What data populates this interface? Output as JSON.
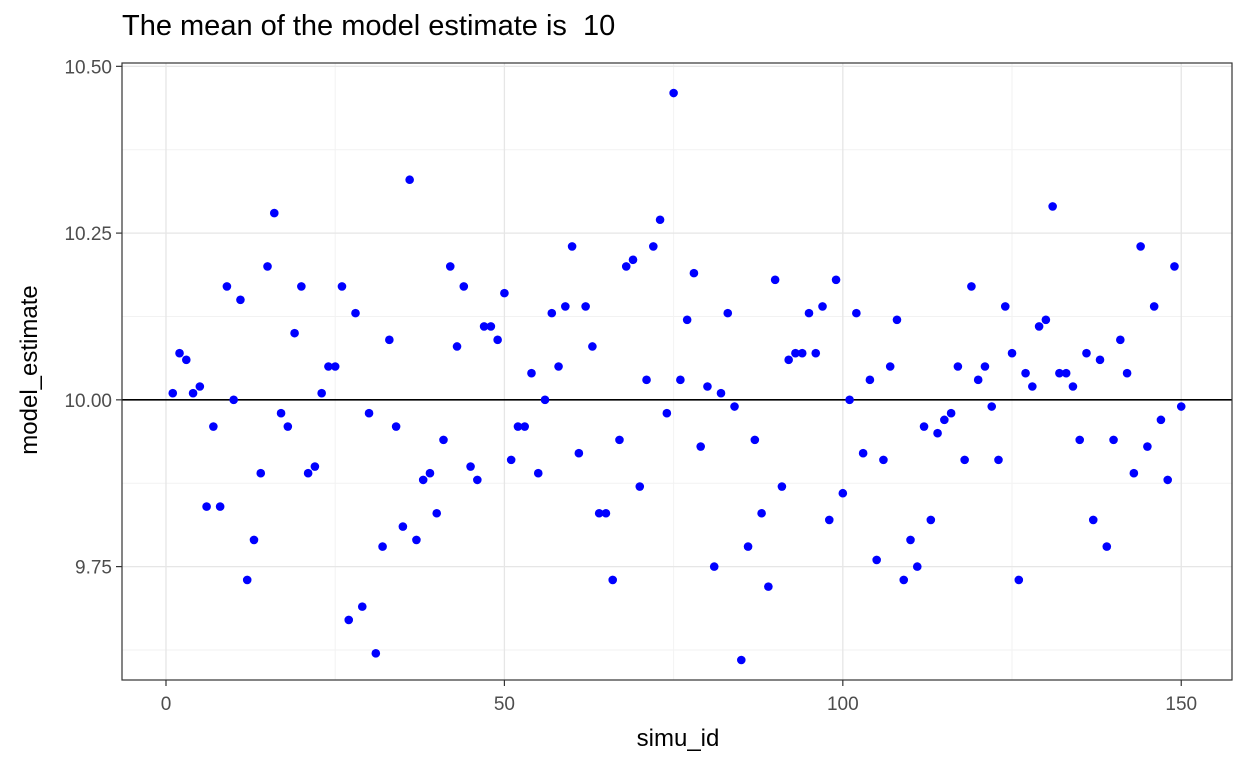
{
  "chart_data": {
    "type": "scatter",
    "title": "The mean of the model estimate is  10",
    "xlabel": "simu_id",
    "ylabel": "model_estimate",
    "xlim": [
      -6.5,
      157.5
    ],
    "ylim": [
      9.58,
      10.505
    ],
    "x_ticks": [
      0,
      50,
      100,
      150
    ],
    "x_tick_labels": [
      "0",
      "50",
      "100",
      "150"
    ],
    "y_ticks": [
      9.75,
      10.0,
      10.25,
      10.5
    ],
    "y_tick_labels": [
      "9.75",
      "10.00",
      "10.25",
      "10.50"
    ],
    "grid": true,
    "reference_line": 10.0,
    "point_color": "#0000ff",
    "points": [
      [
        1,
        10.01
      ],
      [
        2,
        10.07
      ],
      [
        3,
        10.06
      ],
      [
        4,
        10.01
      ],
      [
        5,
        10.02
      ],
      [
        6,
        9.84
      ],
      [
        7,
        9.96
      ],
      [
        8,
        9.84
      ],
      [
        9,
        10.17
      ],
      [
        10,
        10.0
      ],
      [
        11,
        10.15
      ],
      [
        12,
        9.73
      ],
      [
        13,
        9.79
      ],
      [
        14,
        9.89
      ],
      [
        15,
        10.2
      ],
      [
        16,
        10.28
      ],
      [
        17,
        9.98
      ],
      [
        18,
        9.96
      ],
      [
        19,
        10.1
      ],
      [
        20,
        10.17
      ],
      [
        21,
        9.89
      ],
      [
        22,
        9.9
      ],
      [
        23,
        10.01
      ],
      [
        24,
        10.05
      ],
      [
        25,
        10.05
      ],
      [
        26,
        10.17
      ],
      [
        27,
        9.67
      ],
      [
        28,
        10.13
      ],
      [
        29,
        9.69
      ],
      [
        30,
        9.98
      ],
      [
        31,
        9.62
      ],
      [
        32,
        9.78
      ],
      [
        33,
        10.09
      ],
      [
        34,
        9.96
      ],
      [
        35,
        9.81
      ],
      [
        36,
        10.33
      ],
      [
        37,
        9.79
      ],
      [
        38,
        9.88
      ],
      [
        39,
        9.89
      ],
      [
        40,
        9.83
      ],
      [
        41,
        9.94
      ],
      [
        42,
        10.2
      ],
      [
        43,
        10.08
      ],
      [
        44,
        10.17
      ],
      [
        45,
        9.9
      ],
      [
        46,
        9.88
      ],
      [
        47,
        10.11
      ],
      [
        48,
        10.11
      ],
      [
        49,
        10.09
      ],
      [
        50,
        10.16
      ],
      [
        51,
        9.91
      ],
      [
        52,
        9.96
      ],
      [
        53,
        9.96
      ],
      [
        54,
        10.04
      ],
      [
        55,
        9.89
      ],
      [
        56,
        10.0
      ],
      [
        57,
        10.13
      ],
      [
        58,
        10.05
      ],
      [
        59,
        10.14
      ],
      [
        60,
        10.23
      ],
      [
        61,
        9.92
      ],
      [
        62,
        10.14
      ],
      [
        63,
        10.08
      ],
      [
        64,
        9.83
      ],
      [
        65,
        9.83
      ],
      [
        66,
        9.73
      ],
      [
        67,
        9.94
      ],
      [
        68,
        10.2
      ],
      [
        69,
        10.21
      ],
      [
        70,
        9.87
      ],
      [
        71,
        10.03
      ],
      [
        72,
        10.23
      ],
      [
        73,
        10.27
      ],
      [
        74,
        9.98
      ],
      [
        75,
        10.46
      ],
      [
        76,
        10.03
      ],
      [
        77,
        10.12
      ],
      [
        78,
        10.19
      ],
      [
        79,
        9.93
      ],
      [
        80,
        10.02
      ],
      [
        81,
        9.75
      ],
      [
        82,
        10.01
      ],
      [
        83,
        10.13
      ],
      [
        84,
        9.99
      ],
      [
        85,
        9.61
      ],
      [
        86,
        9.78
      ],
      [
        87,
        9.94
      ],
      [
        88,
        9.83
      ],
      [
        89,
        9.72
      ],
      [
        90,
        10.18
      ],
      [
        91,
        9.87
      ],
      [
        92,
        10.06
      ],
      [
        93,
        10.07
      ],
      [
        94,
        10.07
      ],
      [
        95,
        10.13
      ],
      [
        96,
        10.07
      ],
      [
        97,
        10.14
      ],
      [
        98,
        9.82
      ],
      [
        99,
        10.18
      ],
      [
        100,
        9.86
      ],
      [
        101,
        10.0
      ],
      [
        102,
        10.13
      ],
      [
        103,
        9.92
      ],
      [
        104,
        10.03
      ],
      [
        105,
        9.76
      ],
      [
        106,
        9.91
      ],
      [
        107,
        10.05
      ],
      [
        108,
        10.12
      ],
      [
        109,
        9.73
      ],
      [
        110,
        9.79
      ],
      [
        111,
        9.75
      ],
      [
        112,
        9.96
      ],
      [
        113,
        9.82
      ],
      [
        114,
        9.95
      ],
      [
        115,
        9.97
      ],
      [
        116,
        9.98
      ],
      [
        117,
        10.05
      ],
      [
        118,
        9.91
      ],
      [
        119,
        10.17
      ],
      [
        120,
        10.03
      ],
      [
        121,
        10.05
      ],
      [
        122,
        9.99
      ],
      [
        123,
        9.91
      ],
      [
        124,
        10.14
      ],
      [
        125,
        10.07
      ],
      [
        126,
        9.73
      ],
      [
        127,
        10.04
      ],
      [
        128,
        10.02
      ],
      [
        129,
        10.11
      ],
      [
        130,
        10.12
      ],
      [
        131,
        10.29
      ],
      [
        132,
        10.04
      ],
      [
        133,
        10.04
      ],
      [
        134,
        10.02
      ],
      [
        135,
        9.94
      ],
      [
        136,
        10.07
      ],
      [
        137,
        9.82
      ],
      [
        138,
        10.06
      ],
      [
        139,
        9.78
      ],
      [
        140,
        9.94
      ],
      [
        141,
        10.09
      ],
      [
        142,
        10.04
      ],
      [
        143,
        9.89
      ],
      [
        144,
        10.23
      ],
      [
        145,
        9.93
      ],
      [
        146,
        10.14
      ],
      [
        147,
        9.97
      ],
      [
        148,
        9.88
      ],
      [
        149,
        10.2
      ],
      [
        150,
        9.99
      ]
    ]
  }
}
